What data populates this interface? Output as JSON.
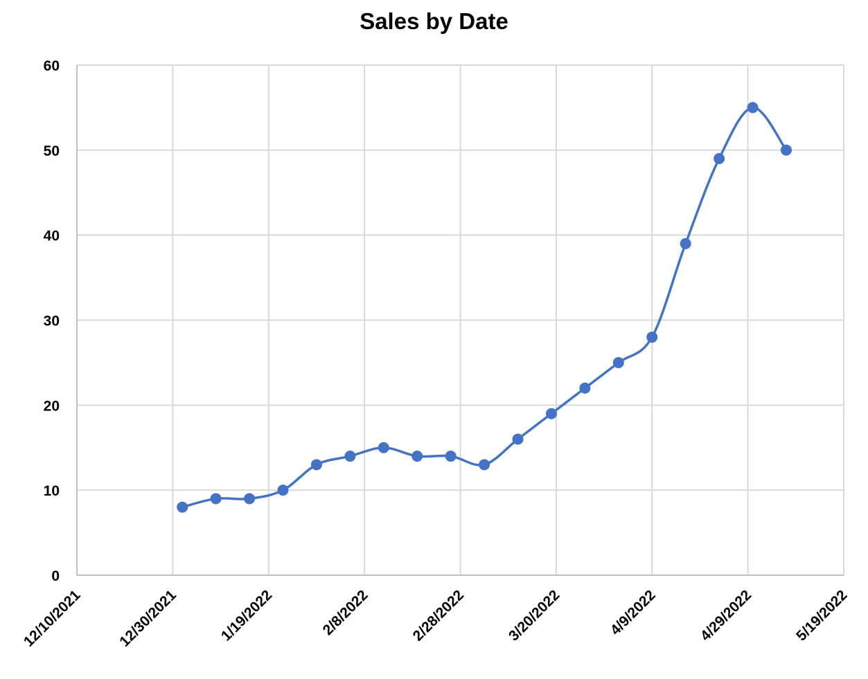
{
  "chart_data": {
    "type": "line",
    "title": "Sales by Date",
    "xlabel": "",
    "ylabel": "",
    "smooth": true,
    "markers": true,
    "series_color": "#4472C4",
    "grid": true,
    "legend": null,
    "x_axis": {
      "type": "date",
      "min": "12/10/2021",
      "max": "5/19/2022",
      "tick_labels": [
        "12/10/2021",
        "12/30/2021",
        "1/19/2022",
        "2/8/2022",
        "2/28/2022",
        "3/20/2022",
        "4/9/2022",
        "4/29/2022",
        "5/19/2022"
      ]
    },
    "y_axis": {
      "min": 0,
      "max": 60,
      "tick_labels": [
        "0",
        "10",
        "20",
        "30",
        "40",
        "50",
        "60"
      ]
    },
    "series": [
      {
        "name": "Sales",
        "x": [
          "1/1/2022",
          "1/8/2022",
          "1/15/2022",
          "1/22/2022",
          "1/29/2022",
          "2/5/2022",
          "2/12/2022",
          "2/19/2022",
          "2/26/2022",
          "3/5/2022",
          "3/12/2022",
          "3/19/2022",
          "3/26/2022",
          "4/2/2022",
          "4/9/2022",
          "4/16/2022",
          "4/23/2022",
          "4/30/2022",
          "5/7/2022"
        ],
        "day_offsets": [
          22,
          29,
          36,
          43,
          50,
          57,
          64,
          71,
          78,
          85,
          92,
          99,
          106,
          113,
          120,
          127,
          134,
          141,
          148
        ],
        "values": [
          8,
          9,
          9,
          10,
          13,
          14,
          15,
          14,
          14,
          13,
          16,
          19,
          22,
          25,
          28,
          39,
          49,
          55,
          50
        ]
      }
    ]
  }
}
